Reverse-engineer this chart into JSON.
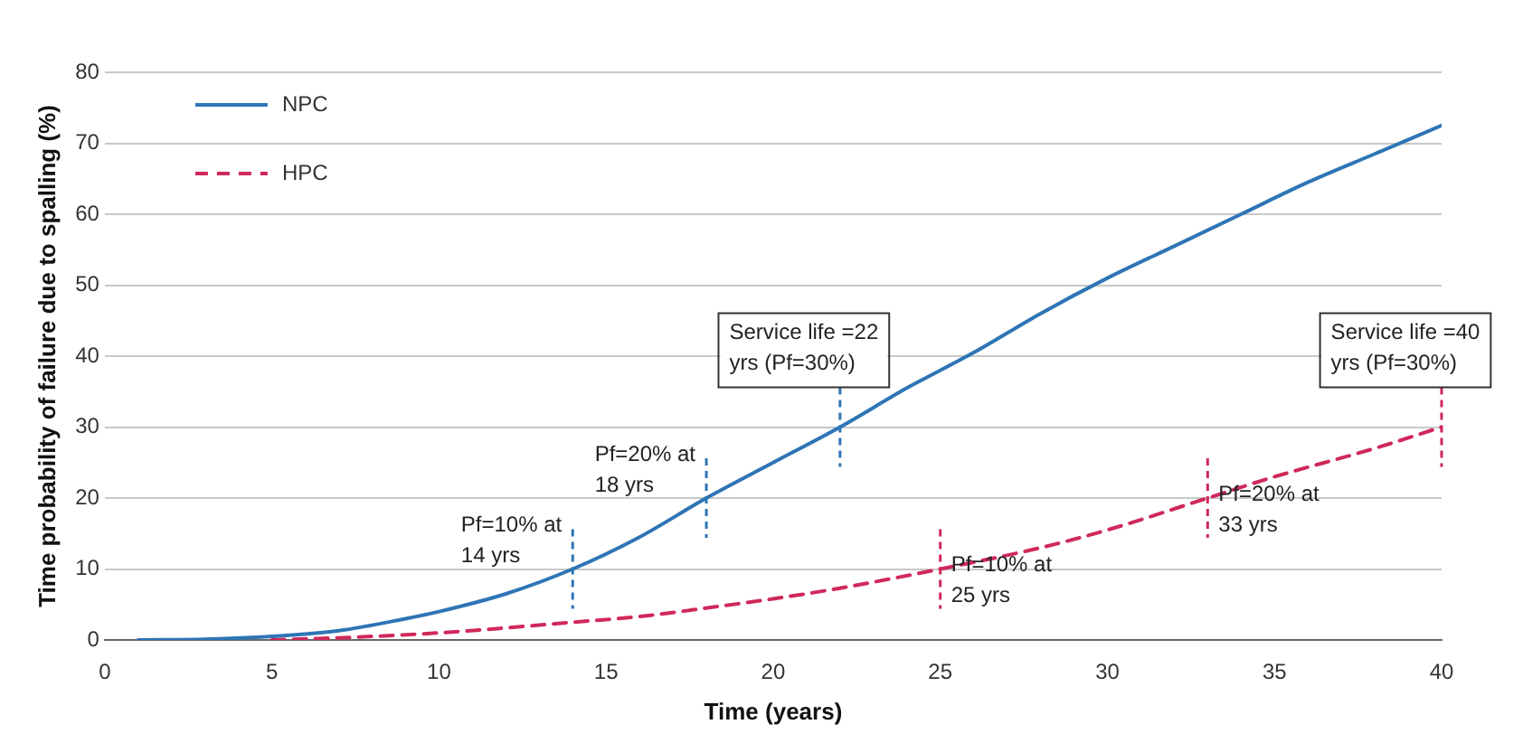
{
  "chart_data": {
    "type": "line",
    "xlabel": "Time (years)",
    "ylabel": "Time probability of failure due to spalling (%)",
    "xlim": [
      0,
      40
    ],
    "xticks": [
      0,
      5,
      10,
      15,
      20,
      25,
      30,
      35,
      40
    ],
    "ylim": [
      0,
      80
    ],
    "yticks": [
      0,
      10,
      20,
      30,
      40,
      50,
      60,
      70,
      80
    ],
    "grid": "y",
    "legend": "top left",
    "marker": "none",
    "series": [
      {
        "name": "NPC",
        "color": "#2e75b6",
        "line_style": "solid",
        "x": [
          1,
          3,
          5,
          7,
          9,
          10,
          12,
          14,
          16,
          18,
          20,
          22,
          24,
          26,
          28,
          30,
          32,
          34,
          36,
          38,
          40
        ],
        "values": [
          0,
          0.1,
          0.5,
          1.3,
          3,
          4,
          6.5,
          10,
          14.5,
          20,
          25,
          30,
          35.5,
          40.5,
          46,
          51,
          55.5,
          60,
          64.5,
          68.5,
          72.5
        ]
      },
      {
        "name": "HPC",
        "color": "#d0285a",
        "line_style": "dashed",
        "x": [
          5,
          7,
          10,
          12,
          14,
          16,
          18,
          20,
          22,
          25,
          28,
          30,
          33,
          35,
          38,
          40
        ],
        "values": [
          0,
          0.3,
          1,
          1.7,
          2.5,
          3.3,
          4.5,
          5.8,
          7.3,
          10,
          13,
          15.5,
          20,
          23,
          27,
          30
        ]
      }
    ],
    "annotations": [
      {
        "text": "Pf=10% at\n14 yrs",
        "x": 14,
        "y": 10
      },
      {
        "text": "Pf=20% at\n18 yrs",
        "x": 18,
        "y": 20
      },
      {
        "text": "Service life =22\nyrs (Pf=30%)",
        "x": 22,
        "y": 30
      },
      {
        "text": "Pf=10% at\n25 yrs",
        "x": 25,
        "y": 10
      },
      {
        "text": "Pf=20% at\n33 yrs",
        "x": 33,
        "y": 20
      },
      {
        "text": "Service life =40\nyrs (Pf=30%)",
        "x": 40,
        "y": 30
      }
    ]
  }
}
